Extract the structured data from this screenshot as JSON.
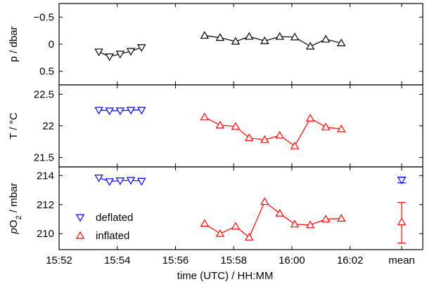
{
  "colors": {
    "deflated": "#0000ff",
    "inflated": "#ff0000",
    "pressure": "#000000",
    "axes": "#000000"
  },
  "legend": {
    "deflated": "deflated",
    "inflated": "inflated",
    "placement": "bottom-left of bottom panel"
  },
  "labels": {
    "xlabel": "time (UTC) / HH:MM",
    "mean": "mean"
  },
  "chart_data": [
    {
      "type": "line",
      "panel": "pressure",
      "ylabel": "p / dbar",
      "y_inverted": true,
      "xlim": [
        "15:52",
        "16:04:30"
      ],
      "ylim": [
        -0.75,
        0.75
      ],
      "xticks": [
        "15:52",
        "15:54",
        "15:56",
        "15:58",
        "16:00",
        "16:02"
      ],
      "yticks": [
        -0.5,
        0,
        0.5
      ],
      "yticklabels": [
        "−0.5",
        "0",
        "0.5"
      ],
      "series": [
        {
          "name": "deflated",
          "marker": "triangle-down",
          "x": [
            "15:53:22",
            "15:53:44",
            "15:54:06",
            "15:54:28",
            "15:54:50"
          ],
          "y": [
            0.14,
            0.23,
            0.18,
            0.13,
            0.06
          ]
        },
        {
          "name": "inflated",
          "marker": "triangle-up",
          "x": [
            "15:57:00",
            "15:57:32",
            "15:58:04",
            "15:58:32",
            "15:59:04",
            "15:59:35",
            "16:00:06",
            "16:00:38",
            "16:01:10",
            "16:01:42"
          ],
          "y": [
            -0.16,
            -0.12,
            -0.05,
            -0.14,
            -0.06,
            -0.14,
            -0.13,
            0.04,
            -0.09,
            -0.02
          ]
        }
      ]
    },
    {
      "type": "line",
      "panel": "temperature",
      "ylabel": "T / °C",
      "xlim": [
        "15:52",
        "16:04:30"
      ],
      "ylim": [
        21.35,
        22.65
      ],
      "xticks": [
        "15:52",
        "15:54",
        "15:56",
        "15:58",
        "16:00",
        "16:02"
      ],
      "yticks": [
        21.5,
        22,
        22.5
      ],
      "yticklabels": [
        "21.5",
        "22",
        "22.5"
      ],
      "series": [
        {
          "name": "deflated",
          "marker": "triangle-down",
          "x": [
            "15:53:22",
            "15:53:44",
            "15:54:06",
            "15:54:28",
            "15:54:50"
          ],
          "y": [
            22.25,
            22.24,
            22.24,
            22.25,
            22.25
          ]
        },
        {
          "name": "inflated",
          "marker": "triangle-up",
          "x": [
            "15:57:00",
            "15:57:32",
            "15:58:04",
            "15:58:32",
            "15:59:04",
            "15:59:35",
            "16:00:06",
            "16:00:38",
            "16:01:10",
            "16:01:42"
          ],
          "y": [
            22.14,
            22.01,
            21.99,
            21.81,
            21.78,
            21.85,
            21.68,
            22.12,
            21.98,
            21.95
          ]
        }
      ]
    },
    {
      "type": "line",
      "panel": "oxygen",
      "ylabel": "pO2 / mbar",
      "xlim": [
        "15:52",
        "16:04:30"
      ],
      "ylim": [
        208.9,
        214.6
      ],
      "xticks": [
        "15:52",
        "15:54",
        "15:56",
        "15:58",
        "16:00",
        "16:02"
      ],
      "yticks": [
        210,
        212,
        214
      ],
      "yticklabels": [
        "210",
        "212",
        "214"
      ],
      "series": [
        {
          "name": "deflated",
          "marker": "triangle-down",
          "x": [
            "15:53:22",
            "15:53:44",
            "15:54:06",
            "15:54:28",
            "15:54:50"
          ],
          "y": [
            213.85,
            213.6,
            213.65,
            213.68,
            213.62
          ]
        },
        {
          "name": "inflated",
          "marker": "triangle-up",
          "x": [
            "15:57:00",
            "15:57:32",
            "15:58:04",
            "15:58:32",
            "15:59:04",
            "15:59:35",
            "16:00:06",
            "16:00:38",
            "16:01:10",
            "16:01:42"
          ],
          "y": [
            210.7,
            210.0,
            210.5,
            209.75,
            212.2,
            211.4,
            210.65,
            210.6,
            211.0,
            211.05
          ]
        }
      ],
      "means": [
        {
          "name": "deflated",
          "x": "mean",
          "y": 213.7,
          "err_low": 213.5,
          "err_high": 213.9
        },
        {
          "name": "inflated",
          "x": "mean",
          "y": 210.8,
          "err_low": 209.35,
          "err_high": 212.15
        }
      ]
    }
  ]
}
